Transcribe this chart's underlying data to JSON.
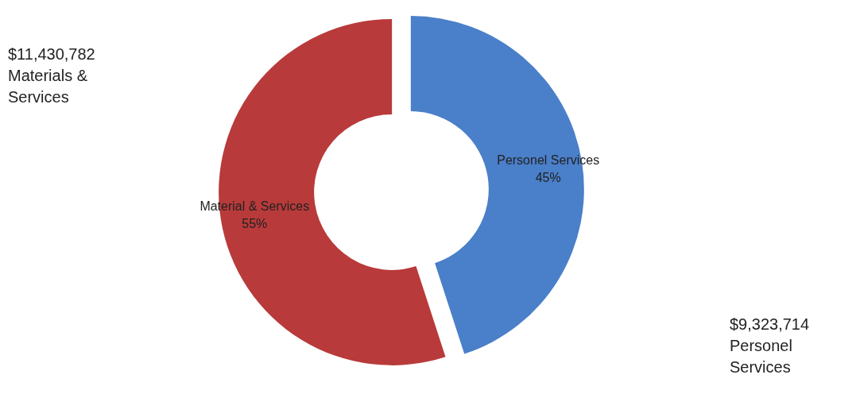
{
  "chart_data": {
    "type": "donut",
    "categories": [
      "Personel Services",
      "Material & Services"
    ],
    "values": [
      45,
      55
    ],
    "value_labels": [
      "45%",
      "55%"
    ],
    "colors": [
      "#4a7fc9",
      "#b93a3a"
    ],
    "annotations": [
      "$11,430,782 Materials & Services",
      "$9,323,714 Personel Services"
    ]
  }
}
